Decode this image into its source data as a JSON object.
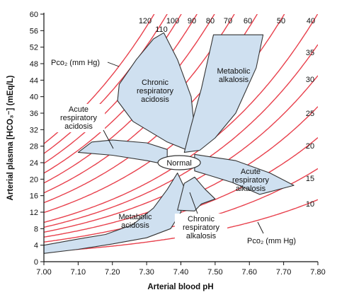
{
  "chart_data": {
    "type": "line",
    "xlabel": "Arterial blood pH",
    "ylabel": "Arterial plasma [HCO₃⁻] (mEq/L)",
    "xlim": [
      7.0,
      7.8
    ],
    "ylim": [
      0,
      60
    ],
    "x_ticks": [
      "7.00",
      "7.10",
      "7.20",
      "7.30",
      "7.40",
      "7.50",
      "7.60",
      "7.70",
      "7.80"
    ],
    "y_ticks": [
      "0",
      "4",
      "8",
      "12",
      "16",
      "20",
      "24",
      "28",
      "32",
      "36",
      "40",
      "44",
      "48",
      "52",
      "56",
      "60"
    ],
    "isobar_unit_label": "Pco₂ (mm Hg)",
    "isobars": [
      {
        "pco2": 10,
        "label": "10"
      },
      {
        "pco2": 15,
        "label": "15"
      },
      {
        "pco2": 20,
        "label": "20"
      },
      {
        "pco2": 25,
        "label": "25"
      },
      {
        "pco2": 30,
        "label": "30"
      },
      {
        "pco2": 35,
        "label": "35"
      },
      {
        "pco2": 40,
        "label": "40"
      },
      {
        "pco2": 50,
        "label": "50"
      },
      {
        "pco2": 60,
        "label": "60"
      },
      {
        "pco2": 70,
        "label": "70"
      },
      {
        "pco2": 80,
        "label": "80"
      },
      {
        "pco2": 90,
        "label": "90"
      },
      {
        "pco2": 100,
        "label": "100"
      },
      {
        "pco2": 110,
        "label": "110"
      },
      {
        "pco2": 120,
        "label": "120"
      }
    ],
    "regions": [
      {
        "name": "Normal",
        "label": "Normal",
        "center": [
          7.4,
          24
        ]
      },
      {
        "name": "Chronic respiratory acidosis",
        "label_lines": [
          "Chronic",
          "respiratory",
          "acidosis"
        ]
      },
      {
        "name": "Metabolic alkalosis",
        "label_lines": [
          "Metabolic",
          "alkalosis"
        ]
      },
      {
        "name": "Acute respiratory acidosis",
        "label_lines": [
          "Acute",
          "respiratory",
          "acidosis"
        ]
      },
      {
        "name": "Acute respiratory alkalosis",
        "label_lines": [
          "Acute",
          "respiratory",
          "alkalosis"
        ]
      },
      {
        "name": "Metabolic acidosis",
        "label_lines": [
          "Metabolic",
          "acidosis"
        ]
      },
      {
        "name": "Chronic respiratory alkalosis",
        "label_lines": [
          "Chronic",
          "respiratory",
          "alkalosis"
        ]
      }
    ],
    "colors": {
      "isobar": "#e8414d",
      "region_fill": "#cfe0f0",
      "region_stroke": "#333333",
      "axis": "#111111"
    }
  }
}
